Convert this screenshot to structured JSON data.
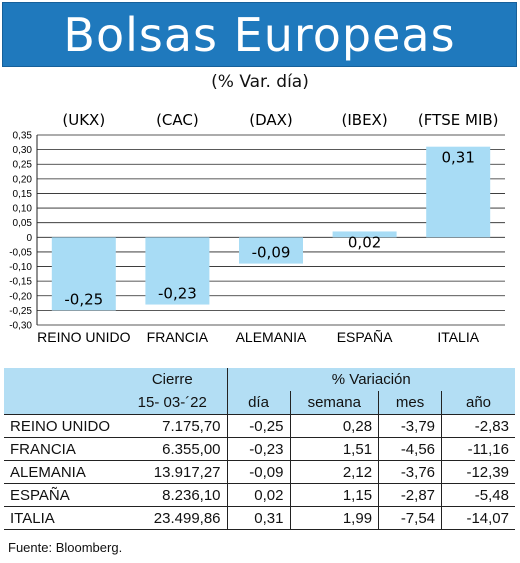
{
  "header": {
    "title": "Bolsas Europeas",
    "subtitle": "(% Var. día)"
  },
  "colors": {
    "title_bg": "#1f79bd",
    "bar": "#a8dcf5",
    "table_header_bg": "#b3def4"
  },
  "chart_data": {
    "type": "bar",
    "categories": [
      "REINO UNIDO",
      "FRANCIA",
      "ALEMANIA",
      "ESPAÑA",
      "ITALIA"
    ],
    "index_labels": [
      "(UKX)",
      "(CAC)",
      "(DAX)",
      "(IBEX)",
      "(FTSE MIB)"
    ],
    "values": [
      -0.25,
      -0.23,
      -0.09,
      0.02,
      0.31
    ],
    "value_labels": [
      "-0,25",
      "-0,23",
      "-0,09",
      "0,02",
      "0,31"
    ],
    "ylim": [
      -0.3,
      0.35
    ],
    "yticks": [
      "0,35",
      "0,30",
      "0,25",
      "0,20",
      "0,15",
      "0,10",
      "0,05",
      "0",
      "-0,05",
      "-0,10",
      "-0,15",
      "-0,20",
      "-0,25",
      "-0,30"
    ],
    "grid": true
  },
  "table": {
    "group_headers": [
      "Cierre",
      "% Variación"
    ],
    "sub_headers": [
      "15- 03-´22",
      "día",
      "semana",
      "mes",
      "año"
    ],
    "rows": [
      {
        "name": "REINO UNIDO",
        "cierre": "7.175,70",
        "dia": "-0,25",
        "semana": "0,28",
        "mes": "-3,79",
        "ano": "-2,83"
      },
      {
        "name": "FRANCIA",
        "cierre": "6.355,00",
        "dia": "-0,23",
        "semana": "1,51",
        "mes": "-4,56",
        "ano": "-11,16"
      },
      {
        "name": "ALEMANIA",
        "cierre": "13.917,27",
        "dia": "-0,09",
        "semana": "2,12",
        "mes": "-3,76",
        "ano": "-12,39"
      },
      {
        "name": "ESPAÑA",
        "cierre": "8.236,10",
        "dia": "0,02",
        "semana": "1,15",
        "mes": "-2,87",
        "ano": "-5,48"
      },
      {
        "name": "ITALIA",
        "cierre": "23.499,86",
        "dia": "0,31",
        "semana": "1,99",
        "mes": "-7,54",
        "ano": "-14,07"
      }
    ]
  },
  "footer": {
    "source": "Fuente: Bloomberg."
  }
}
